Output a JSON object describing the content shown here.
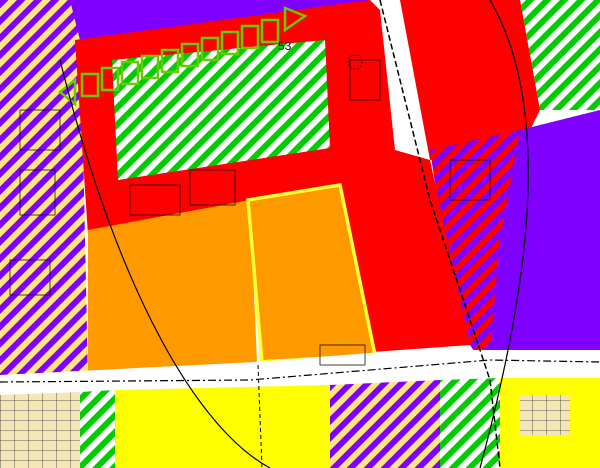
{
  "map": {
    "labels": {
      "parcel_number": "53"
    },
    "colors": {
      "red_zone": "#ff0000",
      "orange_zone": "#ff9900",
      "purple_zone": "#7f00ff",
      "yellow_zone": "#ffff00",
      "green_zone": "#00cc00",
      "road": "#ffffff",
      "residential": "#f5e6b8",
      "highlight_outline": "#ffff33",
      "line": "#000000"
    }
  }
}
